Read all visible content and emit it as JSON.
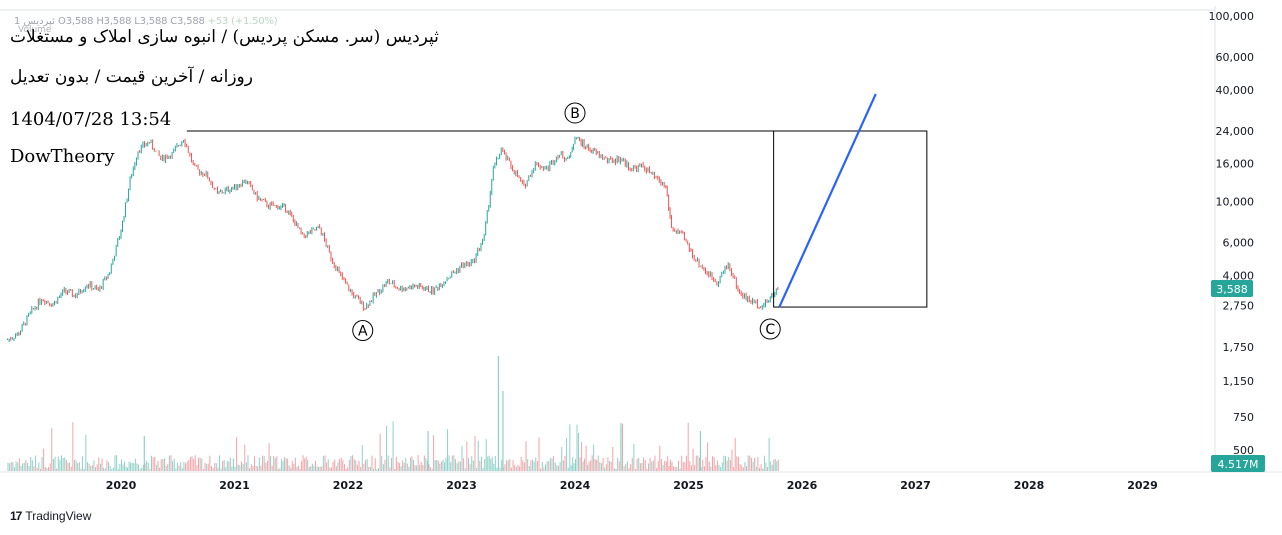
{
  "header": {
    "ohlc_line": {
      "symbol": "1 ثپردیس",
      "open": "O3,588",
      "high": "H3,588",
      "low": "L3,588",
      "close": "C3,588",
      "change": "+53 (+1.50%)"
    },
    "volume_label": "Volume"
  },
  "annotations": {
    "line1": "ثپردیس (سر. مسکن پردیس) / انبوه سازی املاک و مستغلات",
    "line2": "روزانه / آخرین قیمت / بدون تعدیل",
    "line3": "1404/07/28 13:54",
    "line4": "DowTheory"
  },
  "footer": {
    "brand": "TradingView",
    "logo_glyph": "17"
  },
  "colors": {
    "up": "#26a69a",
    "down": "#ef5350",
    "up_volume": "#8fd1c8",
    "down_volume": "#f3a3a7",
    "projection": "#2962ff",
    "last_price_bg": "#26a69a"
  },
  "chart_data": {
    "type": "line",
    "scale": "log",
    "grid": false,
    "y_ticks": [
      "100,000",
      "60,000",
      "40,000",
      "24,000",
      "16,000",
      "10,000",
      "6,000",
      "4,000",
      "2,750",
      "1,750",
      "1,150",
      "750",
      "500"
    ],
    "y_tick_values": [
      100000,
      60000,
      40000,
      24000,
      16000,
      10000,
      6000,
      4000,
      2750,
      1750,
      1150,
      750,
      500
    ],
    "x_ticks": [
      "2020",
      "2021",
      "2022",
      "2023",
      "2024",
      "2025",
      "2026",
      "2027",
      "2028",
      "2029"
    ],
    "last_price_label": "3,588",
    "volume_label": "4.517M",
    "price_series": {
      "name": "",
      "x": [
        2019.0,
        2019.1,
        2019.2,
        2019.3,
        2019.4,
        2019.5,
        2019.6,
        2019.7,
        2019.8,
        2019.9,
        2020.0,
        2020.08,
        2020.15,
        2020.25,
        2020.35,
        2020.45,
        2020.55,
        2020.65,
        2020.75,
        2020.85,
        2021.0,
        2021.1,
        2021.2,
        2021.3,
        2021.45,
        2021.6,
        2021.75,
        2021.85,
        2021.95,
        2022.05,
        2022.15,
        2022.25,
        2022.35,
        2022.45,
        2022.6,
        2022.75,
        2022.9,
        2023.0,
        2023.1,
        2023.2,
        2023.28,
        2023.35,
        2023.45,
        2023.55,
        2023.65,
        2023.75,
        2023.85,
        2023.95,
        2024.0,
        2024.08,
        2024.2,
        2024.3,
        2024.4,
        2024.5,
        2024.6,
        2024.7,
        2024.8,
        2024.85,
        2024.95,
        2025.05,
        2025.15,
        2025.25,
        2025.35,
        2025.45,
        2025.55,
        2025.65,
        2025.72,
        2025.8
      ],
      "y": [
        1800,
        1950,
        2500,
        3000,
        2800,
        3300,
        3100,
        3600,
        3300,
        4200,
        7000,
        13000,
        19000,
        21000,
        17000,
        18000,
        22000,
        15000,
        14000,
        11000,
        12000,
        13000,
        10500,
        9500,
        9300,
        6500,
        7200,
        5000,
        3800,
        3100,
        2700,
        3200,
        3700,
        3400,
        3500,
        3300,
        4000,
        4500,
        4700,
        6500,
        15000,
        19000,
        15000,
        12000,
        16000,
        15000,
        18000,
        17000,
        22500,
        20000,
        18000,
        16500,
        17000,
        15000,
        15500,
        13500,
        12000,
        7200,
        6500,
        5000,
        4200,
        3700,
        4600,
        3200,
        2900,
        2750,
        3000,
        3588
      ]
    },
    "volume_series": {
      "name": "",
      "ylim": [
        0,
        5000000
      ]
    },
    "waves": [
      {
        "label": "A",
        "x": 2022.13,
        "y": 2650
      },
      {
        "label": "B",
        "x": 2024.0,
        "y": 24000
      },
      {
        "label": "C",
        "x": 2025.72,
        "y": 2700
      }
    ],
    "resistance_line": {
      "x0": 2020.58,
      "x1": 2026.5,
      "y": 24000
    },
    "box": {
      "x0": 2025.75,
      "x1": 2027.1,
      "y_top": 24000,
      "y_bottom": 2700
    },
    "projection_line": {
      "x0": 2025.8,
      "y0": 2700,
      "x1": 2026.65,
      "y1": 38000
    }
  }
}
